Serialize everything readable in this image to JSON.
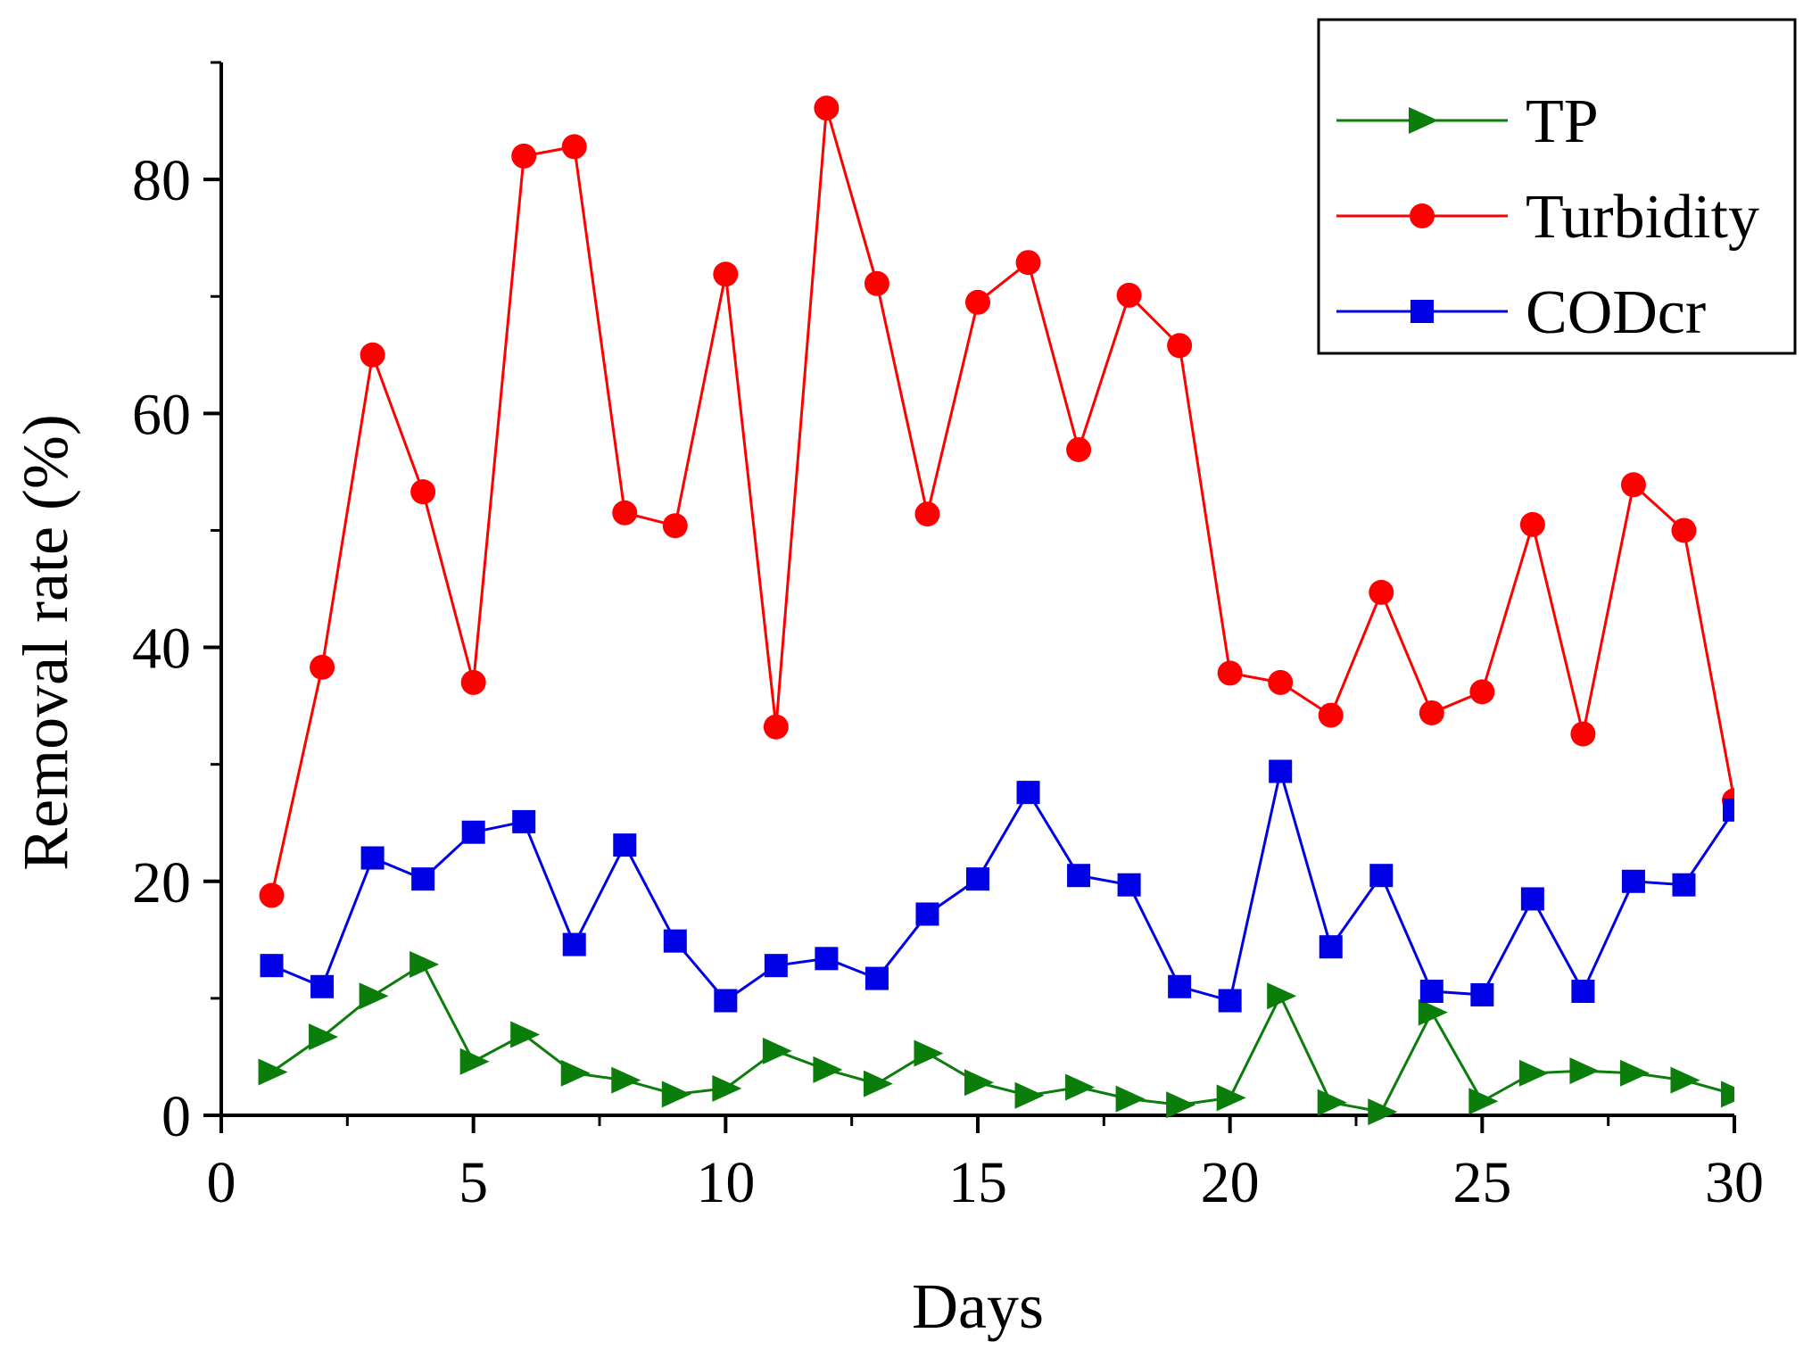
{
  "chart_data": {
    "type": "line",
    "title": "",
    "xlabel": "Days",
    "ylabel": "Removal rate (%)",
    "xlim": [
      0,
      30
    ],
    "ylim": [
      0,
      90
    ],
    "xticks": [
      0,
      5,
      10,
      15,
      20,
      25,
      30
    ],
    "yticks": [
      0,
      20,
      40,
      60,
      80
    ],
    "grid": false,
    "legend_position": "top-right",
    "x": [
      1,
      2,
      3,
      4,
      5,
      6,
      7,
      8,
      9,
      10,
      11,
      12,
      13,
      14,
      15,
      16,
      17,
      18,
      19,
      20,
      21,
      22,
      23,
      24,
      25,
      26,
      27,
      28,
      29,
      30
    ],
    "series": [
      {
        "name": "TP",
        "color": "#0a7d0a",
        "marker": "triangle-right",
        "values": [
          3.7,
          6.7,
          10.2,
          12.9,
          4.6,
          6.9,
          3.6,
          3.0,
          1.8,
          2.3,
          5.5,
          3.9,
          2.7,
          5.3,
          2.8,
          1.7,
          2.4,
          1.4,
          0.9,
          1.5,
          10.2,
          1.1,
          0.3,
          8.8,
          1.2,
          3.6,
          3.8,
          3.6,
          3.0,
          1.8
        ]
      },
      {
        "name": "Turbidity",
        "color": "#ff0000",
        "marker": "circle",
        "values": [
          18.8,
          38.3,
          65.0,
          53.3,
          37.0,
          82.0,
          82.8,
          51.5,
          50.4,
          71.9,
          33.2,
          86.1,
          71.1,
          51.4,
          69.5,
          72.9,
          56.9,
          70.1,
          65.8,
          37.8,
          37.0,
          34.2,
          44.7,
          34.4,
          36.2,
          50.5,
          32.6,
          53.9,
          50.0,
          26.9
        ]
      },
      {
        "name": "CODcr",
        "color": "#0000e6",
        "marker": "square",
        "values": [
          12.8,
          11.0,
          22.0,
          20.2,
          24.2,
          25.1,
          14.6,
          23.1,
          14.9,
          9.8,
          12.8,
          13.4,
          11.7,
          17.2,
          20.2,
          27.6,
          20.5,
          19.7,
          11.0,
          9.8,
          29.4,
          14.4,
          20.5,
          10.6,
          10.3,
          18.5,
          10.6,
          20.0,
          19.7,
          26.1
        ]
      }
    ]
  }
}
